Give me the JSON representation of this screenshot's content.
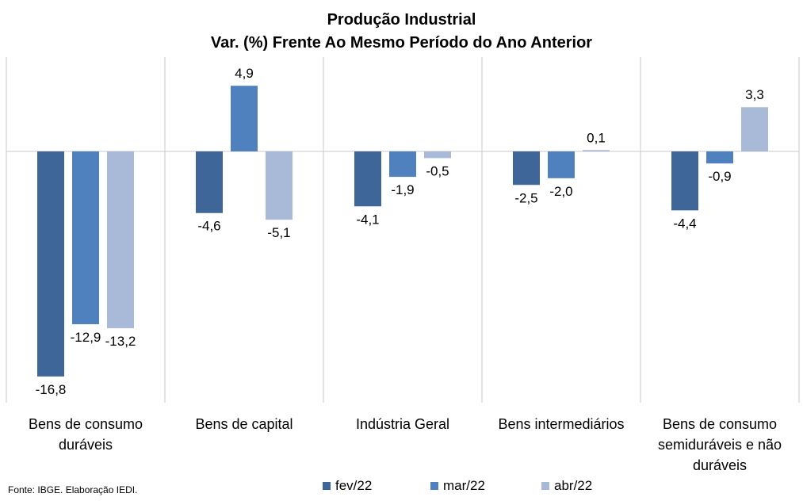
{
  "chart_data": {
    "type": "bar",
    "title": "Produção Industrial",
    "subtitle": "Var. (%) Frente Ao Mesmo Período do Ano Anterior",
    "categories": [
      [
        "Bens de consumo",
        "duráveis"
      ],
      [
        "Bens de capital"
      ],
      [
        "Indústria Geral"
      ],
      [
        "Bens intermediários"
      ],
      [
        "Bens de consumo",
        "semiduráveis e não",
        "duráveis"
      ]
    ],
    "series": [
      {
        "name": "fev/22",
        "color": "#3f6699",
        "values": [
          -16.8,
          -4.6,
          -4.1,
          -2.5,
          -4.4
        ],
        "labels": [
          "-16,8",
          "-4,6",
          "-4,1",
          "-2,5",
          "-4,4"
        ]
      },
      {
        "name": "mar/22",
        "color": "#4e81bd",
        "values": [
          -12.9,
          4.9,
          -1.9,
          -2.0,
          -0.9
        ],
        "labels": [
          "-12,9",
          "4,9",
          "-1,9",
          "-2,0",
          "-0,9"
        ]
      },
      {
        "name": "abr/22",
        "color": "#a9b9d8",
        "values": [
          -13.2,
          -5.1,
          -0.5,
          0.1,
          3.3
        ],
        "labels": [
          "-13,2",
          "-5,1",
          "-0,5",
          "0,1",
          "3,3"
        ]
      }
    ],
    "ylim": [
      -18,
      6.5
    ],
    "grid": false,
    "legend": "bottom",
    "source": "Fonte: IBGE. Elaboração IEDI."
  }
}
